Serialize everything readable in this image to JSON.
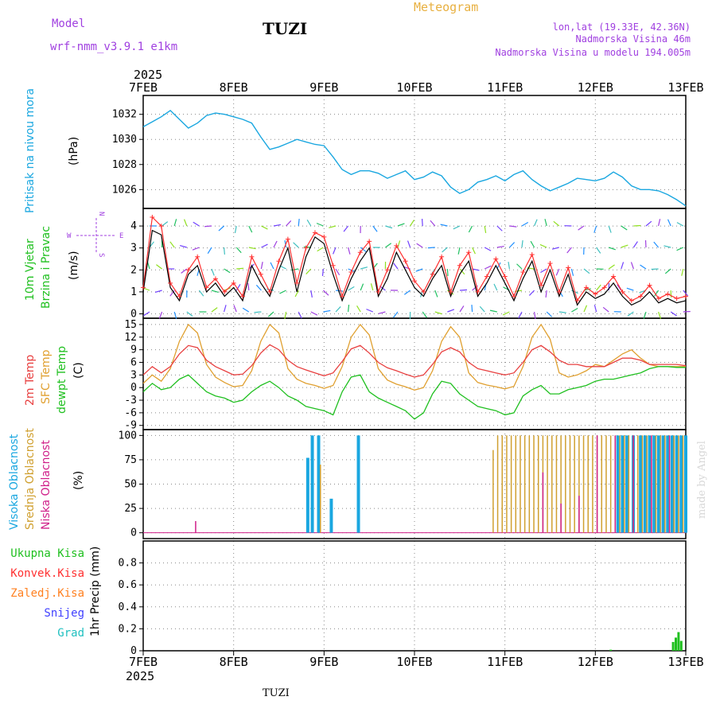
{
  "header": {
    "model_label": "Model",
    "model_name": "wrf-nmm_v3.9.1  e1km",
    "station": "TUZI",
    "meteogram": "Meteogram",
    "lonlat": "lon,lat (19.33E, 42.36N)",
    "elevation": "Nadmorska Visina 46m",
    "model_elevation": "Nadmorska Visina u modelu 194.005m",
    "year_top": "2025",
    "year_bottom": "2025",
    "footer_station": "TUZI",
    "credit": "made by Angel"
  },
  "colors": {
    "pressure": "#1aa7e0",
    "wind_speed": "#000000",
    "wind_gust": "#ff3030",
    "temp_2m": "#e84040",
    "temp_sfc": "#e0a030",
    "dewpoint": "#20c020",
    "cloud_high": "#1aa7e0",
    "cloud_mid": "#d0a030",
    "cloud_low": "#d0208a",
    "precip_total": "#20c020",
    "precip_conv": "#ff3030",
    "precip_frozen": "#ff8020",
    "precip_snow": "#4040ff",
    "precip_graupel": "#20c0c0",
    "label_purple": "#a040e0",
    "label_orange": "#e8b040"
  },
  "x_axis": {
    "labels": [
      "7FEB",
      "8FEB",
      "9FEB",
      "10FEB",
      "11FEB",
      "12FEB",
      "13FEB"
    ]
  },
  "chart_data": [
    {
      "type": "line",
      "ylabel_left": "Pritisak na nivou mora",
      "unit": "(hPa)",
      "ylim": [
        1024.5,
        1033.5
      ],
      "yticks": [
        "1026",
        "1028",
        "1030",
        "1032"
      ],
      "x_days": [
        0,
        0.1,
        0.2,
        0.3,
        0.4,
        0.5,
        0.6,
        0.7,
        0.8,
        0.9,
        1.0,
        1.1,
        1.2,
        1.3,
        1.4,
        1.5,
        1.6,
        1.7,
        1.8,
        1.9,
        2.0,
        2.1,
        2.2,
        2.3,
        2.4,
        2.5,
        2.6,
        2.7,
        2.8,
        2.9,
        3.0,
        3.1,
        3.2,
        3.3,
        3.4,
        3.5,
        3.6,
        3.7,
        3.8,
        3.9,
        4.0,
        4.1,
        4.2,
        4.3,
        4.4,
        4.5,
        4.6,
        4.7,
        4.8,
        4.9,
        5.0,
        5.1,
        5.2,
        5.3,
        5.4,
        5.5,
        5.6,
        5.7,
        5.8,
        5.9,
        6.0
      ],
      "series": [
        {
          "name": "Pritisak na nivou mora",
          "values": [
            1031.0,
            1031.4,
            1031.8,
            1032.3,
            1031.6,
            1030.9,
            1031.3,
            1031.9,
            1032.1,
            1032.0,
            1031.8,
            1031.6,
            1031.3,
            1030.2,
            1029.2,
            1029.4,
            1029.7,
            1030.0,
            1029.8,
            1029.6,
            1029.5,
            1028.6,
            1027.6,
            1027.2,
            1027.5,
            1027.5,
            1027.3,
            1026.9,
            1027.2,
            1027.5,
            1026.8,
            1027.0,
            1027.4,
            1027.1,
            1026.2,
            1025.7,
            1026.0,
            1026.6,
            1026.8,
            1027.1,
            1026.7,
            1027.2,
            1027.5,
            1026.8,
            1026.3,
            1025.9,
            1026.2,
            1026.5,
            1026.9,
            1026.8,
            1026.7,
            1026.9,
            1027.4,
            1027.0,
            1026.3,
            1026.0,
            1026.0,
            1025.9,
            1025.6,
            1025.2,
            1024.7
          ]
        }
      ]
    },
    {
      "type": "line",
      "ylabel_left": "10m Vjetar",
      "ylabel_left2": "Brzina i Pravac",
      "unit": "(m/s)",
      "compass": {
        "n": "N",
        "s": "S",
        "w": "W",
        "e": "E"
      },
      "ylim": [
        -0.2,
        4.8
      ],
      "yticks": [
        "0",
        "1",
        "2",
        "3",
        "4"
      ],
      "x_days": [
        0,
        0.1,
        0.2,
        0.3,
        0.4,
        0.5,
        0.6,
        0.7,
        0.8,
        0.9,
        1.0,
        1.1,
        1.2,
        1.3,
        1.4,
        1.5,
        1.6,
        1.7,
        1.8,
        1.9,
        2.0,
        2.1,
        2.2,
        2.3,
        2.4,
        2.5,
        2.6,
        2.7,
        2.8,
        2.9,
        3.0,
        3.1,
        3.2,
        3.3,
        3.4,
        3.5,
        3.6,
        3.7,
        3.8,
        3.9,
        4.0,
        4.1,
        4.2,
        4.3,
        4.4,
        4.5,
        4.6,
        4.7,
        4.8,
        4.9,
        5.0,
        5.1,
        5.2,
        5.3,
        5.4,
        5.5,
        5.6,
        5.7,
        5.8,
        5.9,
        6.0
      ],
      "series": [
        {
          "name": "10m wind speed",
          "values": [
            1.0,
            3.8,
            3.6,
            1.2,
            0.6,
            1.8,
            2.2,
            1.0,
            1.4,
            0.8,
            1.2,
            0.6,
            2.2,
            1.4,
            0.8,
            2.0,
            3.0,
            1.0,
            2.6,
            3.5,
            3.2,
            1.8,
            0.6,
            1.6,
            2.4,
            3.0,
            0.8,
            1.6,
            2.8,
            2.0,
            1.2,
            0.8,
            1.6,
            2.2,
            0.8,
            1.8,
            2.4,
            0.8,
            1.4,
            2.2,
            1.4,
            0.6,
            1.6,
            2.4,
            1.0,
            2.0,
            0.8,
            1.8,
            0.4,
            1.0,
            0.7,
            0.9,
            1.4,
            0.8,
            0.4,
            0.6,
            1.0,
            0.5,
            0.7,
            0.5,
            0.6
          ]
        },
        {
          "name": "10m wind gust",
          "values": [
            1.2,
            4.4,
            4.0,
            1.4,
            0.8,
            2.0,
            2.6,
            1.2,
            1.6,
            1.0,
            1.4,
            0.8,
            2.6,
            1.8,
            1.0,
            2.4,
            3.4,
            1.4,
            3.0,
            3.7,
            3.5,
            2.2,
            0.8,
            1.9,
            2.8,
            3.3,
            1.0,
            2.0,
            3.1,
            2.4,
            1.5,
            1.0,
            1.8,
            2.6,
            1.0,
            2.2,
            2.8,
            1.0,
            1.7,
            2.5,
            1.7,
            0.8,
            1.9,
            2.7,
            1.3,
            2.3,
            1.0,
            2.1,
            0.6,
            1.2,
            0.9,
            1.2,
            1.7,
            1.0,
            0.6,
            0.8,
            1.3,
            0.7,
            0.9,
            0.7,
            0.8
          ]
        }
      ]
    },
    {
      "type": "line",
      "ylabel_left": "2m Temp",
      "ylabel_left2": "SFC Temp",
      "ylabel_left3": "dewpt Temp",
      "unit": "(C)",
      "ylim": [
        -10,
        16.5
      ],
      "yticks": [
        "-9",
        "-6",
        "-3",
        "0",
        "3",
        "6",
        "9",
        "12",
        "15"
      ],
      "x_days": [
        0,
        0.1,
        0.2,
        0.3,
        0.4,
        0.5,
        0.6,
        0.7,
        0.8,
        0.9,
        1.0,
        1.1,
        1.2,
        1.3,
        1.4,
        1.5,
        1.6,
        1.7,
        1.8,
        1.9,
        2.0,
        2.1,
        2.2,
        2.3,
        2.4,
        2.5,
        2.6,
        2.7,
        2.8,
        2.9,
        3.0,
        3.1,
        3.2,
        3.3,
        3.4,
        3.5,
        3.6,
        3.7,
        3.8,
        3.9,
        4.0,
        4.1,
        4.2,
        4.3,
        4.4,
        4.5,
        4.6,
        4.7,
        4.8,
        4.9,
        5.0,
        5.1,
        5.2,
        5.3,
        5.4,
        5.5,
        5.6,
        5.7,
        5.8,
        5.9,
        6.0
      ],
      "series": [
        {
          "name": "2m Temp",
          "values": [
            3,
            5,
            3.5,
            5,
            8,
            10,
            9.5,
            6.5,
            5,
            4,
            3,
            3.2,
            5.2,
            8.2,
            10.2,
            9,
            6.5,
            5,
            4.2,
            3.5,
            2.8,
            3.5,
            6.2,
            9.2,
            10,
            8.2,
            6,
            4.7,
            4,
            3.2,
            2.5,
            3,
            5.5,
            8.5,
            9.5,
            8.5,
            6,
            4.5,
            4,
            3.5,
            3,
            3.5,
            6,
            9,
            10,
            8.5,
            6.5,
            5.5,
            5.5,
            5,
            5,
            5,
            6,
            7,
            7,
            6.5,
            5.5,
            5.5,
            5.5,
            5.5,
            5.2
          ]
        },
        {
          "name": "SFC Temp",
          "values": [
            1,
            3,
            1.5,
            4.5,
            11,
            15,
            13,
            5.5,
            2.5,
            1.2,
            0.2,
            0.5,
            4,
            11,
            15,
            13,
            4.5,
            2,
            1,
            0.5,
            -0.2,
            0.5,
            5,
            12,
            15,
            12.5,
            4.5,
            1.8,
            0.8,
            0.2,
            -0.6,
            0,
            4,
            11,
            14.5,
            12,
            3.5,
            1.2,
            0.6,
            0.2,
            -0.3,
            0.3,
            5,
            12,
            15,
            11.5,
            3.5,
            2.5,
            3,
            4,
            5.5,
            5,
            6.5,
            8,
            9,
            7,
            5.5,
            5,
            5,
            5,
            5
          ]
        },
        {
          "name": "dewpt Temp",
          "values": [
            -1,
            1,
            -0.5,
            0,
            2,
            3,
            1,
            -1,
            -2,
            -2.5,
            -3.5,
            -3,
            -1,
            0.5,
            1.5,
            0,
            -2,
            -3,
            -4.5,
            -5,
            -5.5,
            -6.5,
            -1,
            2.5,
            3,
            -1,
            -2.5,
            -3.5,
            -4.5,
            -5.5,
            -7.5,
            -6,
            -1.5,
            1.5,
            1,
            -1.5,
            -3,
            -4.5,
            -5,
            -5.5,
            -6.5,
            -6,
            -2,
            -0.5,
            0.5,
            -1.5,
            -1.5,
            -0.5,
            0,
            0.5,
            1.5,
            2,
            2,
            2.5,
            3,
            3.5,
            4.5,
            5,
            5,
            4.8,
            4.8
          ]
        }
      ]
    },
    {
      "type": "bar",
      "ylabel_left": "Visoka Oblacnost",
      "ylabel_left2": "Srednja Oblacnost",
      "ylabel_left3": "Niska Oblacnost",
      "unit": "(%)",
      "ylim": [
        -6,
        106
      ],
      "yticks": [
        "0",
        "25",
        "50",
        "75",
        "100"
      ],
      "series": [
        {
          "name": "Visoka Oblacnost",
          "x_days": [
            1.82,
            1.87,
            1.94,
            2.08,
            2.38,
            5.25,
            5.3,
            5.35,
            5.42,
            5.5,
            5.55,
            5.6,
            5.65,
            5.7,
            5.75,
            5.8,
            5.85,
            5.9,
            5.95,
            6.0
          ],
          "values": [
            77,
            100,
            100,
            35,
            100,
            100,
            100,
            100,
            100,
            100,
            100,
            100,
            100,
            100,
            100,
            100,
            100,
            100,
            100,
            100
          ]
        },
        {
          "name": "Srednja Oblacnost",
          "x_days": [
            1.96,
            3.87,
            3.92,
            3.97,
            4.02,
            4.07,
            4.12,
            4.17,
            4.22,
            4.27,
            4.32,
            4.37,
            4.42,
            4.47,
            4.52,
            4.57,
            4.62,
            4.67,
            4.72,
            4.77,
            4.82,
            4.87,
            4.92,
            4.97,
            5.02,
            5.07,
            5.12,
            5.17,
            5.22,
            5.27,
            5.32,
            5.37,
            5.42,
            5.47,
            5.52,
            5.57,
            5.62,
            5.67,
            5.72,
            5.77,
            5.82,
            5.87,
            5.92,
            5.97
          ],
          "values": [
            70,
            85,
            100,
            100,
            100,
            100,
            100,
            100,
            100,
            100,
            100,
            100,
            100,
            100,
            100,
            100,
            100,
            100,
            100,
            100,
            100,
            100,
            100,
            100,
            100,
            100,
            100,
            100,
            100,
            100,
            100,
            100,
            100,
            100,
            100,
            100,
            100,
            100,
            100,
            100,
            100,
            100,
            100,
            100
          ]
        },
        {
          "name": "Niska Oblacnost",
          "x_days": [
            0.58,
            4.42,
            4.62,
            4.82,
            5.02,
            5.22,
            5.42,
            5.62,
            5.82
          ],
          "values": [
            12,
            62,
            30,
            38,
            100,
            100,
            100,
            100,
            100
          ]
        }
      ]
    },
    {
      "type": "bar",
      "ylabel_left": "1hr Precip (mm)",
      "legend": [
        "Ukupna Kisa",
        "Konvek.Kisa",
        "Zaledj.Kisa",
        "Snijeg",
        "Grad"
      ],
      "ylim": [
        0,
        1.0
      ],
      "yticks": [
        "0",
        "0.2",
        "0.4",
        "0.6",
        "0.8"
      ],
      "series": [
        {
          "name": "Ukupna Kisa",
          "x_days": [
            5.17,
            5.86,
            5.89,
            5.92,
            5.95
          ],
          "values": [
            0.01,
            0.08,
            0.12,
            0.17,
            0.09
          ]
        }
      ]
    }
  ]
}
